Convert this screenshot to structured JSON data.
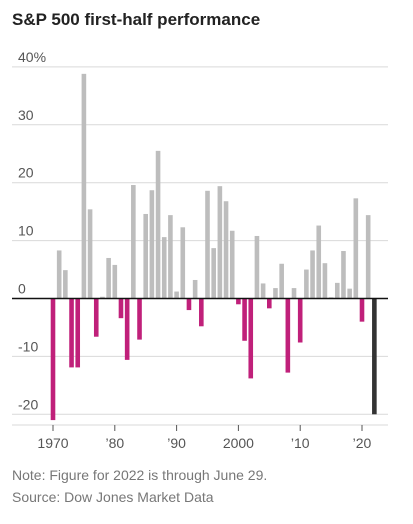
{
  "chart_data": {
    "type": "bar",
    "title": "S&P 500 first-half performance",
    "xlabel": "",
    "ylabel": "",
    "ylim": [
      -22,
      42
    ],
    "y_ticks": [
      {
        "value": 40,
        "label": "40%"
      },
      {
        "value": 30,
        "label": "30"
      },
      {
        "value": 20,
        "label": "20"
      },
      {
        "value": 10,
        "label": "10"
      },
      {
        "value": 0,
        "label": "0"
      },
      {
        "value": -10,
        "label": "-10"
      },
      {
        "value": -20,
        "label": "-20"
      }
    ],
    "x_ticks": [
      {
        "value": 1970,
        "label": "1970"
      },
      {
        "value": 1980,
        "label": "’80"
      },
      {
        "value": 1990,
        "label": "’90"
      },
      {
        "value": 2000,
        "label": "2000"
      },
      {
        "value": 2010,
        "label": "’10"
      },
      {
        "value": 2020,
        "label": "’20"
      }
    ],
    "years": [
      1970,
      1971,
      1972,
      1973,
      1974,
      1975,
      1976,
      1977,
      1978,
      1979,
      1980,
      1981,
      1982,
      1983,
      1984,
      1985,
      1986,
      1987,
      1988,
      1989,
      1990,
      1991,
      1992,
      1993,
      1994,
      1995,
      1996,
      1997,
      1998,
      1999,
      2000,
      2001,
      2002,
      2003,
      2004,
      2005,
      2006,
      2007,
      2008,
      2009,
      2010,
      2011,
      2012,
      2013,
      2014,
      2015,
      2016,
      2017,
      2018,
      2019,
      2020,
      2021,
      2022
    ],
    "values": [
      -21.0,
      8.3,
      4.9,
      -11.9,
      -11.9,
      38.8,
      15.4,
      -6.6,
      0.3,
      7.0,
      5.8,
      -3.4,
      -10.6,
      19.6,
      -7.1,
      14.6,
      18.7,
      25.5,
      10.6,
      14.4,
      1.2,
      12.3,
      -2.0,
      3.2,
      -4.8,
      18.6,
      8.7,
      19.4,
      16.8,
      11.7,
      -1.0,
      -7.3,
      -13.8,
      10.8,
      2.6,
      -1.7,
      1.8,
      6.0,
      -12.8,
      1.8,
      -7.6,
      5.0,
      8.3,
      12.6,
      6.1,
      0.2,
      2.7,
      8.2,
      1.7,
      17.3,
      -4.0,
      14.4,
      -20.0
    ]
  },
  "colors": {
    "positive": "#bdbdbd",
    "negative": "#c0207a",
    "current": "#333333",
    "grid": "#d9d9d9",
    "baseline": "#111111"
  },
  "notes": {
    "note": "Note: Figure for 2022 is through June 29.",
    "source": "Source: Dow Jones Market Data"
  }
}
